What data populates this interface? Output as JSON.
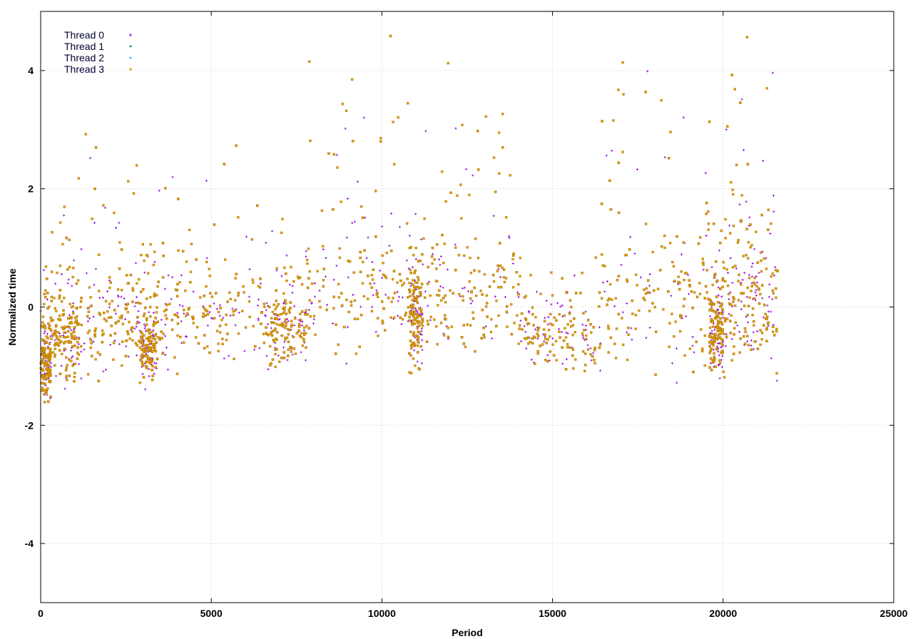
{
  "chart_data": {
    "type": "scatter",
    "title": "",
    "xlabel": "Period",
    "ylabel": "Normalized time",
    "xlim": [
      0,
      25000
    ],
    "ylim": [
      -5,
      5
    ],
    "x_ticks": [
      0,
      5000,
      10000,
      15000,
      20000,
      25000
    ],
    "x_tick_labels": [
      "0",
      "5000",
      "10000",
      "15000",
      "20000",
      "25000"
    ],
    "y_ticks": [
      -4,
      -2,
      0,
      2,
      4
    ],
    "y_tick_labels": [
      "-4",
      "-2",
      "0",
      "2",
      "4"
    ],
    "grid": true,
    "legend_position": "top-left",
    "series": [
      {
        "name": "Thread 0",
        "color": "#9400d3",
        "marker": "plus"
      },
      {
        "name": "Thread 1",
        "color": "#009e73",
        "marker": "dot"
      },
      {
        "name": "Thread 2",
        "color": "#56b4e9",
        "marker": "dot"
      },
      {
        "name": "Thread 3",
        "color": "#e69f00",
        "marker": "square"
      }
    ],
    "data_extent_x": [
      0,
      21600
    ],
    "segments": [
      {
        "x": [
          0,
          300
        ],
        "mean": -1.0,
        "spread": 0.35,
        "spike_max": 1.0
      },
      {
        "x": [
          300,
          1100
        ],
        "mean": -0.6,
        "spread": 0.45,
        "spike_max": 2.0
      },
      {
        "x": [
          1100,
          2900
        ],
        "mean": -0.3,
        "spread": 0.55,
        "spike_max": 3.6
      },
      {
        "x": [
          2900,
          3400
        ],
        "mean": -0.7,
        "spread": 0.35,
        "spike_max": 1.5
      },
      {
        "x": [
          3400,
          6600
        ],
        "mean": -0.2,
        "spread": 0.6,
        "spike_max": 3.8
      },
      {
        "x": [
          6600,
          7800
        ],
        "mean": -0.4,
        "spread": 0.45,
        "spike_max": 1.5
      },
      {
        "x": [
          7800,
          10800
        ],
        "mean": 0.1,
        "spread": 0.7,
        "spike_max": 4.8
      },
      {
        "x": [
          10800,
          11200
        ],
        "mean": -0.3,
        "spread": 0.5,
        "spike_max": 2.0
      },
      {
        "x": [
          11200,
          14000
        ],
        "mean": 0.2,
        "spread": 0.75,
        "spike_max": 4.9
      },
      {
        "x": [
          14000,
          16400
        ],
        "mean": -0.5,
        "spread": 0.4,
        "spike_max": 1.3
      },
      {
        "x": [
          16400,
          19600
        ],
        "mean": 0.1,
        "spread": 0.8,
        "spike_max": 5.0
      },
      {
        "x": [
          19600,
          20000
        ],
        "mean": -0.4,
        "spread": 0.45,
        "spike_max": 1.5
      },
      {
        "x": [
          20000,
          21600
        ],
        "mean": 0.0,
        "spread": 0.75,
        "spike_max": 5.0
      }
    ]
  }
}
